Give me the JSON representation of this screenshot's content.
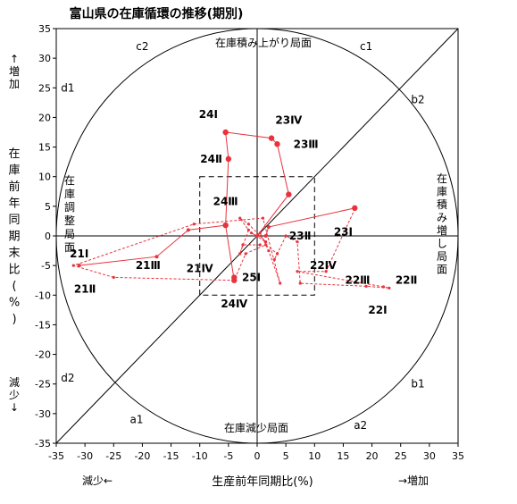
{
  "chart_data": {
    "type": "scatter",
    "title": "富山県の在庫循環の推移(期別)",
    "xlabel": "生産前年同期比(%)",
    "ylabel": "在庫前年同期末比(%)",
    "xlim": [
      -35,
      35
    ],
    "ylim": [
      -35,
      35
    ],
    "ticks": [
      -35,
      -30,
      -25,
      -20,
      -15,
      -10,
      -5,
      0,
      5,
      10,
      15,
      20,
      25,
      30,
      35
    ],
    "axis_notes": {
      "x_decrease": "減少←",
      "x_increase": "→増加",
      "y_increase": "↑増加",
      "y_decrease": "減少↓"
    },
    "phases": {
      "top": "在庫積み上がり局面",
      "bottom": "在庫減少局面",
      "left": "在庫調整局面",
      "right": "在庫積み増し局面"
    },
    "zones": [
      {
        "label": "c2",
        "x": -20,
        "y": 32
      },
      {
        "label": "c1",
        "x": 19,
        "y": 32
      },
      {
        "label": "d1",
        "x": -33,
        "y": 25
      },
      {
        "label": "b2",
        "x": 28,
        "y": 23
      },
      {
        "label": "d2",
        "x": -33,
        "y": -24
      },
      {
        "label": "b1",
        "x": 28,
        "y": -25
      },
      {
        "label": "a1",
        "x": -21,
        "y": -31
      },
      {
        "label": "a2",
        "x": 18,
        "y": -32
      }
    ],
    "series": [
      {
        "style": "dashed",
        "color": "#e8323c",
        "points": [
          {
            "x": 0.5,
            "y": -1.5
          },
          {
            "x": -2.5,
            "y": -1.5
          },
          {
            "x": -3.0,
            "y": -3.0
          },
          {
            "x": -1.5,
            "y": 1.0
          },
          {
            "x": -3.0,
            "y": 3.0
          },
          {
            "x": -1.5,
            "y": 2.0
          },
          {
            "x": 1.5,
            "y": -1.0
          },
          {
            "x": -1.0,
            "y": 0.5
          },
          {
            "x": 0.0,
            "y": 0.0
          },
          {
            "x": 0.5,
            "y": 0.5
          },
          {
            "x": 2.0,
            "y": -2.5
          },
          {
            "x": 4.0,
            "y": -8.0
          },
          {
            "x": 1.0,
            "y": 3.0
          },
          {
            "x": -11.0,
            "y": 2.0
          },
          {
            "x": -32.0,
            "y": -5.0
          },
          {
            "x": -25.0,
            "y": -7.0
          },
          {
            "x": -4.0,
            "y": -7.5
          },
          {
            "x": -2.0,
            "y": -3.0
          },
          {
            "x": 1.5,
            "y": -1.5
          },
          {
            "x": 3.5,
            "y": -3.0
          },
          {
            "x": 3.0,
            "y": -4.0
          },
          {
            "x": 5.0,
            "y": 0.0
          },
          {
            "x": 7.0,
            "y": -1.0
          },
          {
            "x": 7.5,
            "y": -8.0
          },
          {
            "x": 19.0,
            "y": -8.5
          },
          {
            "x": 23.0,
            "y": -8.8
          },
          {
            "x": 22.0,
            "y": -8.6
          },
          {
            "x": 7.0,
            "y": -6.0
          },
          {
            "x": 12.0,
            "y": -6.0
          },
          {
            "x": 17.0,
            "y": 4.5
          }
        ]
      },
      {
        "style": "solid",
        "color": "#e8323c",
        "points": [
          {
            "x": 17.0,
            "y": 4.7,
            "label": "23Ⅰ"
          },
          {
            "x": 2.0,
            "y": 1.5
          },
          {
            "x": 1.5,
            "y": 0.0
          }
        ]
      },
      {
        "style": "solid",
        "color": "#e8323c",
        "points": [
          {
            "x": -31.0,
            "y": -5.0
          },
          {
            "x": -17.5,
            "y": -3.5
          },
          {
            "x": -12.0,
            "y": 1.0
          },
          {
            "x": -5.5,
            "y": 1.8
          }
        ]
      },
      {
        "style": "solid",
        "color": "#e8323c",
        "points": [
          {
            "x": 0.0,
            "y": 0.0
          },
          {
            "x": 5.5,
            "y": 7.0,
            "label": "23Ⅱ"
          },
          {
            "x": 3.5,
            "y": 15.5,
            "label": "23Ⅲ"
          },
          {
            "x": 2.5,
            "y": 16.5,
            "label": "23Ⅳ"
          },
          {
            "x": -5.5,
            "y": 17.5,
            "label": "24Ⅰ"
          },
          {
            "x": -5.0,
            "y": 13.0,
            "label": "24Ⅱ"
          },
          {
            "x": -5.5,
            "y": 1.8,
            "label": "24Ⅲ"
          },
          {
            "x": -4.0,
            "y": -7.5,
            "label": "24Ⅳ"
          },
          {
            "x": -4.0,
            "y": -7.0,
            "label": "25Ⅰ"
          }
        ]
      }
    ],
    "point_labels": [
      {
        "text": "21Ⅰ",
        "x": -31,
        "y": -3
      },
      {
        "text": "21Ⅱ",
        "x": -30,
        "y": -9
      },
      {
        "text": "21Ⅲ",
        "x": -19,
        "y": -5
      },
      {
        "text": "21Ⅳ",
        "x": -10,
        "y": -5.5
      },
      {
        "text": "22Ⅰ",
        "x": 21,
        "y": -12.5
      },
      {
        "text": "22Ⅱ",
        "x": 26,
        "y": -7.5
      },
      {
        "text": "22Ⅲ",
        "x": 17.5,
        "y": -7.5
      },
      {
        "text": "22Ⅳ",
        "x": 11.5,
        "y": -5
      }
    ],
    "grid": false,
    "legend": "none"
  }
}
